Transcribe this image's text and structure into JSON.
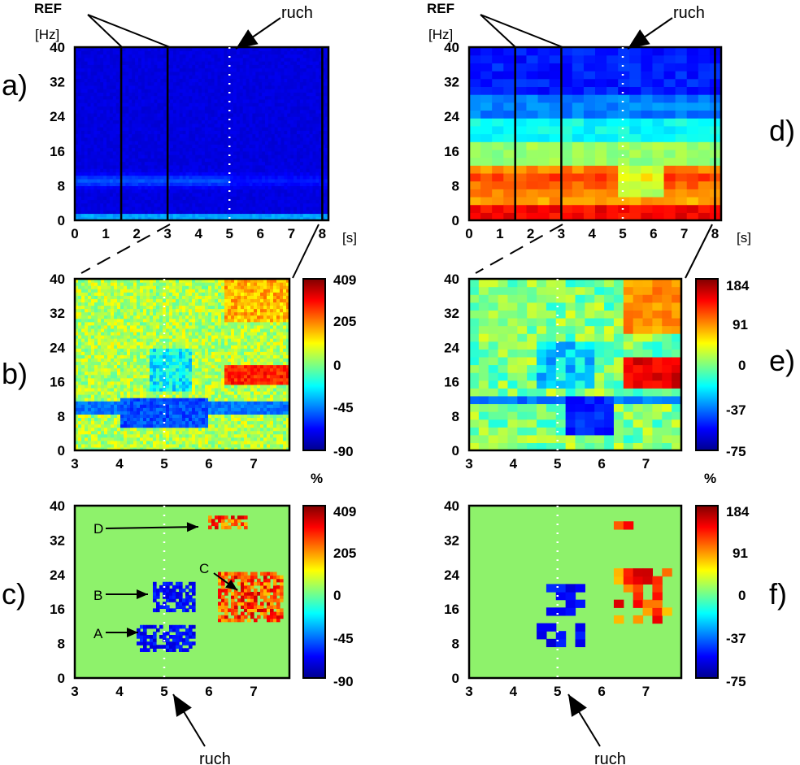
{
  "figure": {
    "panel_labels": [
      "a)",
      "b)",
      "c)",
      "d)",
      "e)",
      "f)"
    ],
    "annotations": {
      "ref": "REF",
      "movement": "ruch",
      "hz_unit": "[Hz]",
      "s_unit": "[s]",
      "percent": "%"
    },
    "region_labels": [
      "A",
      "B",
      "C",
      "D"
    ],
    "colors": {
      "background_green": "#8ef26b",
      "frame": "#000000",
      "marker": "#ffffff"
    }
  },
  "chart_data": [
    {
      "panel": "a)",
      "type": "heatmap",
      "x_ticks": [
        "0",
        "1",
        "2",
        "3",
        "4",
        "5",
        "6",
        "7",
        "8"
      ],
      "y_ticks": [
        "0",
        "8",
        "16",
        "24",
        "32",
        "40"
      ],
      "xlim": [
        0,
        8.2
      ],
      "ylim": [
        0,
        40
      ],
      "ref_lines_s": [
        1.5,
        3
      ],
      "movement_s": 5,
      "dominant_band_hz": 9
    },
    {
      "panel": "b)",
      "type": "heatmap",
      "x_ticks": [
        "3",
        "4",
        "5",
        "6",
        "7"
      ],
      "y_ticks": [
        "0",
        "8",
        "16",
        "24",
        "32",
        "40"
      ],
      "xlim": [
        3,
        7.8
      ],
      "ylim": [
        0,
        40
      ],
      "colorbar_ticks": [
        "409",
        "205",
        "0",
        "-45",
        "-90"
      ],
      "colorbar_unit": "%"
    },
    {
      "panel": "c)",
      "type": "heatmap",
      "x_ticks": [
        "3",
        "4",
        "5",
        "6",
        "7"
      ],
      "y_ticks": [
        "0",
        "8",
        "16",
        "24",
        "32",
        "40"
      ],
      "xlim": [
        3,
        7.8
      ],
      "ylim": [
        0,
        40
      ],
      "colorbar_ticks": [
        "409",
        "205",
        "0",
        "-45",
        "-90"
      ],
      "regions": [
        {
          "label": "A",
          "x_s": [
            4.4,
            5.7
          ],
          "y_hz": [
            6,
            12
          ],
          "sign": "negative"
        },
        {
          "label": "B",
          "x_s": [
            4.7,
            5.7
          ],
          "y_hz": [
            15,
            22
          ],
          "sign": "negative"
        },
        {
          "label": "C",
          "x_s": [
            6.2,
            7.7
          ],
          "y_hz": [
            13,
            25
          ],
          "sign": "positive"
        },
        {
          "label": "D",
          "x_s": [
            6.0,
            6.9
          ],
          "y_hz": [
            35,
            38
          ],
          "sign": "positive"
        }
      ]
    },
    {
      "panel": "d)",
      "type": "heatmap",
      "x_ticks": [
        "0",
        "1",
        "2",
        "3",
        "4",
        "5",
        "6",
        "7",
        "8"
      ],
      "y_ticks": [
        "0",
        "8",
        "16",
        "24",
        "32",
        "40"
      ],
      "xlim": [
        0,
        8.2
      ],
      "ylim": [
        0,
        40
      ],
      "ref_lines_s": [
        1.5,
        3
      ],
      "movement_s": 5
    },
    {
      "panel": "e)",
      "type": "heatmap",
      "x_ticks": [
        "3",
        "4",
        "5",
        "6",
        "7"
      ],
      "y_ticks": [
        "0",
        "8",
        "16",
        "24",
        "32",
        "40"
      ],
      "xlim": [
        3,
        7.8
      ],
      "ylim": [
        0,
        40
      ],
      "colorbar_ticks": [
        "184",
        "91",
        "0",
        "-37",
        "-75"
      ],
      "colorbar_unit": "%"
    },
    {
      "panel": "f)",
      "type": "heatmap",
      "x_ticks": [
        "3",
        "4",
        "5",
        "6",
        "7"
      ],
      "y_ticks": [
        "0",
        "8",
        "16",
        "24",
        "32",
        "40"
      ],
      "xlim": [
        3,
        7.8
      ],
      "ylim": [
        0,
        40
      ],
      "colorbar_ticks": [
        "184",
        "91",
        "0",
        "-37",
        "-75"
      ]
    }
  ]
}
